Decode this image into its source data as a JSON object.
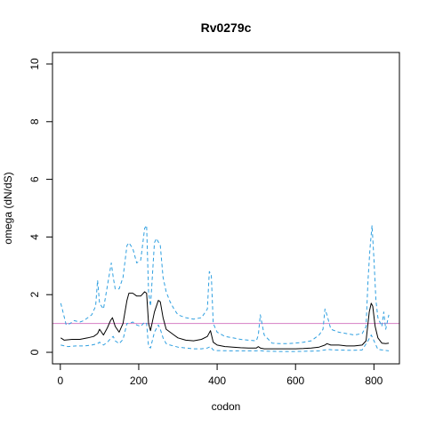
{
  "chart_data": {
    "type": "line",
    "title": "Rv0279c",
    "xlabel": "codon",
    "ylabel": "omega (dN/dS)",
    "xlim": [
      -20,
      865
    ],
    "ylim": [
      -0.4,
      10.4
    ],
    "x_ticks": [
      0,
      200,
      400,
      600,
      800
    ],
    "y_ticks": [
      0,
      2,
      4,
      6,
      8,
      10
    ],
    "grid": false,
    "reference_line": {
      "y": 1,
      "color": "#D67FC4"
    },
    "colors": {
      "estimate": "#000000",
      "interval": "#2E9FE0",
      "reference": "#D67FC4"
    },
    "series": [
      {
        "role": "estimate",
        "style": "solid",
        "color": "#000000",
        "x": [
          1,
          10,
          30,
          50,
          70,
          85,
          95,
          100,
          110,
          120,
          128,
          133,
          140,
          150,
          160,
          170,
          175,
          185,
          195,
          205,
          215,
          220,
          225,
          230,
          240,
          250,
          255,
          262,
          270,
          280,
          290,
          300,
          320,
          340,
          360,
          375,
          383,
          390,
          400,
          420,
          440,
          460,
          480,
          500,
          505,
          510,
          520,
          540,
          560,
          580,
          600,
          620,
          640,
          660,
          675,
          680,
          690,
          710,
          730,
          750,
          770,
          780,
          788,
          793,
          797,
          803,
          810,
          820,
          830,
          838
        ],
        "y": [
          0.5,
          0.42,
          0.45,
          0.45,
          0.5,
          0.55,
          0.65,
          0.8,
          0.6,
          0.85,
          1.1,
          1.2,
          0.9,
          0.7,
          1.0,
          1.8,
          2.05,
          2.05,
          1.95,
          1.95,
          2.1,
          2.05,
          1.0,
          0.75,
          1.4,
          1.8,
          1.75,
          1.2,
          0.8,
          0.7,
          0.6,
          0.5,
          0.42,
          0.4,
          0.45,
          0.55,
          0.75,
          0.35,
          0.25,
          0.2,
          0.18,
          0.16,
          0.15,
          0.15,
          0.2,
          0.15,
          0.12,
          0.12,
          0.12,
          0.12,
          0.12,
          0.13,
          0.15,
          0.18,
          0.25,
          0.3,
          0.25,
          0.25,
          0.22,
          0.22,
          0.25,
          0.4,
          1.4,
          1.7,
          1.6,
          0.9,
          0.5,
          0.32,
          0.3,
          0.32
        ]
      },
      {
        "role": "upper",
        "style": "dashed",
        "color": "#2E9FE0",
        "x": [
          1,
          5,
          15,
          25,
          35,
          50,
          60,
          70,
          80,
          90,
          95,
          100,
          110,
          120,
          130,
          135,
          140,
          150,
          160,
          170,
          175,
          185,
          195,
          205,
          215,
          220,
          225,
          230,
          240,
          245,
          255,
          262,
          270,
          280,
          290,
          300,
          320,
          340,
          360,
          375,
          380,
          385,
          390,
          400,
          420,
          440,
          460,
          480,
          500,
          505,
          510,
          520,
          540,
          560,
          580,
          600,
          620,
          640,
          660,
          670,
          675,
          680,
          690,
          710,
          730,
          750,
          770,
          780,
          785,
          790,
          795,
          800,
          805,
          810,
          820,
          825,
          830,
          838
        ],
        "y": [
          1.7,
          1.5,
          0.95,
          1.0,
          1.1,
          1.05,
          1.1,
          1.2,
          1.3,
          1.6,
          2.5,
          1.7,
          1.5,
          2.3,
          3.1,
          2.6,
          2.2,
          2.2,
          2.6,
          3.7,
          3.8,
          3.6,
          3.1,
          3.2,
          4.3,
          4.4,
          2.1,
          1.6,
          3.8,
          3.95,
          3.7,
          2.6,
          2.1,
          1.75,
          1.5,
          1.3,
          1.2,
          1.15,
          1.2,
          1.5,
          2.8,
          2.7,
          1.0,
          0.7,
          0.55,
          0.5,
          0.45,
          0.42,
          0.4,
          0.6,
          1.3,
          0.6,
          0.32,
          0.3,
          0.3,
          0.32,
          0.35,
          0.4,
          0.6,
          0.8,
          1.5,
          1.3,
          0.8,
          0.7,
          0.65,
          0.6,
          0.65,
          0.9,
          2.5,
          3.6,
          4.4,
          3.2,
          1.8,
          1.2,
          0.9,
          1.4,
          0.8,
          1.3
        ]
      },
      {
        "role": "lower",
        "style": "dashed",
        "color": "#2E9FE0",
        "x": [
          1,
          20,
          40,
          60,
          80,
          95,
          100,
          110,
          120,
          130,
          135,
          140,
          150,
          160,
          170,
          175,
          185,
          195,
          205,
          215,
          220,
          225,
          230,
          240,
          250,
          255,
          262,
          270,
          280,
          300,
          320,
          340,
          360,
          375,
          383,
          390,
          400,
          440,
          480,
          500,
          510,
          520,
          560,
          600,
          640,
          660,
          675,
          680,
          700,
          740,
          770,
          785,
          793,
          800,
          810,
          838
        ],
        "y": [
          0.25,
          0.2,
          0.22,
          0.22,
          0.25,
          0.3,
          0.35,
          0.25,
          0.35,
          0.5,
          0.55,
          0.4,
          0.3,
          0.45,
          1.0,
          1.0,
          1.05,
          0.95,
          0.9,
          1.05,
          1.0,
          0.2,
          0.15,
          0.7,
          0.95,
          0.8,
          0.5,
          0.3,
          0.25,
          0.18,
          0.15,
          0.12,
          0.12,
          0.15,
          0.2,
          0.08,
          0.06,
          0.05,
          0.05,
          0.05,
          0.06,
          0.04,
          0.03,
          0.03,
          0.04,
          0.05,
          0.08,
          0.1,
          0.08,
          0.07,
          0.08,
          0.4,
          0.6,
          0.4,
          0.1,
          0.05
        ]
      }
    ]
  }
}
